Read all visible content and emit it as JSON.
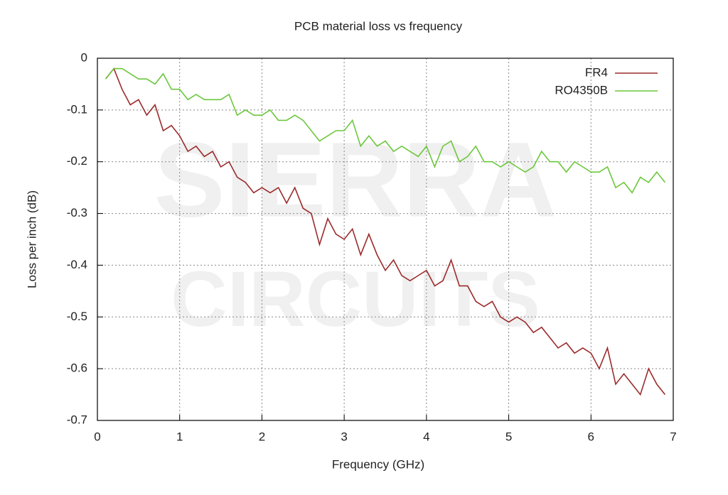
{
  "chart_data": {
    "type": "line",
    "title": "PCB material loss vs frequency",
    "x_label": "Frequency (GHz)",
    "y_label": "Loss per inch (dB)",
    "watermark": [
      "SIERRA",
      "CIRCUITS"
    ],
    "x": [
      0.1,
      0.2,
      0.3,
      0.4,
      0.5,
      0.6,
      0.7,
      0.8,
      0.9,
      1.0,
      1.1,
      1.2,
      1.3,
      1.4,
      1.5,
      1.6,
      1.7,
      1.8,
      1.9,
      2.0,
      2.1,
      2.2,
      2.3,
      2.4,
      2.5,
      2.6,
      2.7,
      2.8,
      2.9,
      3.0,
      3.1,
      3.2,
      3.3,
      3.4,
      3.5,
      3.6,
      3.7,
      3.8,
      3.9,
      4.0,
      4.1,
      4.2,
      4.3,
      4.4,
      4.5,
      4.6,
      4.7,
      4.8,
      4.9,
      5.0,
      5.1,
      5.2,
      5.3,
      5.4,
      5.5,
      5.6,
      5.7,
      5.8,
      5.9,
      6.0,
      6.1,
      6.2,
      6.3,
      6.4,
      6.5,
      6.6,
      6.7,
      6.8,
      6.9
    ],
    "series": [
      {
        "name": "FR4",
        "color": "#9b2b2b",
        "values": [
          -0.04,
          -0.02,
          -0.06,
          -0.09,
          -0.08,
          -0.11,
          -0.09,
          -0.14,
          -0.13,
          -0.15,
          -0.18,
          -0.17,
          -0.19,
          -0.18,
          -0.21,
          -0.2,
          -0.23,
          -0.24,
          -0.26,
          -0.25,
          -0.26,
          -0.25,
          -0.28,
          -0.25,
          -0.29,
          -0.3,
          -0.36,
          -0.31,
          -0.34,
          -0.35,
          -0.33,
          -0.38,
          -0.34,
          -0.38,
          -0.41,
          -0.39,
          -0.42,
          -0.43,
          -0.42,
          -0.41,
          -0.44,
          -0.43,
          -0.39,
          -0.44,
          -0.44,
          -0.47,
          -0.48,
          -0.47,
          -0.5,
          -0.51,
          -0.5,
          -0.51,
          -0.53,
          -0.52,
          -0.54,
          -0.56,
          -0.55,
          -0.57,
          -0.56,
          -0.57,
          -0.6,
          -0.56,
          -0.63,
          -0.61,
          -0.63,
          -0.65,
          -0.6,
          -0.63,
          -0.65
        ]
      },
      {
        "name": "RO4350B",
        "color": "#6cc73c",
        "values": [
          -0.04,
          -0.02,
          -0.02,
          -0.03,
          -0.04,
          -0.04,
          -0.05,
          -0.03,
          -0.06,
          -0.06,
          -0.08,
          -0.07,
          -0.08,
          -0.08,
          -0.08,
          -0.07,
          -0.11,
          -0.1,
          -0.11,
          -0.11,
          -0.1,
          -0.12,
          -0.12,
          -0.11,
          -0.12,
          -0.14,
          -0.16,
          -0.15,
          -0.14,
          -0.14,
          -0.12,
          -0.17,
          -0.15,
          -0.17,
          -0.16,
          -0.18,
          -0.17,
          -0.18,
          -0.19,
          -0.17,
          -0.21,
          -0.17,
          -0.16,
          -0.2,
          -0.19,
          -0.17,
          -0.2,
          -0.2,
          -0.21,
          -0.2,
          -0.21,
          -0.22,
          -0.21,
          -0.18,
          -0.2,
          -0.2,
          -0.22,
          -0.2,
          -0.21,
          -0.22,
          -0.22,
          -0.21,
          -0.25,
          -0.24,
          -0.26,
          -0.23,
          -0.24,
          -0.22,
          -0.24
        ]
      }
    ],
    "xlim": [
      0,
      7
    ],
    "ylim": [
      -0.7,
      0
    ],
    "xticks": [
      0,
      1,
      2,
      3,
      4,
      5,
      6,
      7
    ],
    "yticks": [
      0,
      -0.1,
      -0.2,
      -0.3,
      -0.4,
      -0.5,
      -0.6,
      -0.7
    ],
    "grid": true,
    "legend": "top-right"
  }
}
